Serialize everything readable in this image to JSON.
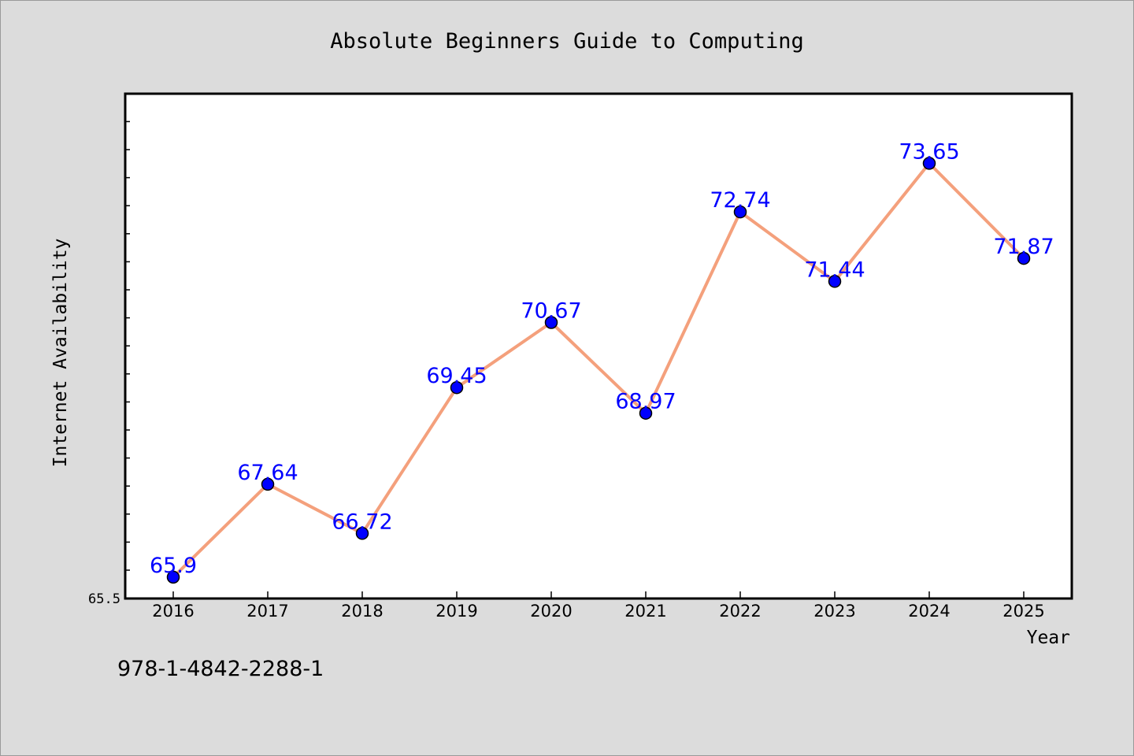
{
  "chart_data": {
    "type": "line",
    "title": "Absolute Beginners Guide to Computing",
    "xlabel": "Year",
    "ylabel": "Internet Availability",
    "categories": [
      "2016",
      "2017",
      "2018",
      "2019",
      "2020",
      "2021",
      "2022",
      "2023",
      "2024",
      "2025"
    ],
    "values": [
      65.9,
      67.64,
      66.72,
      69.45,
      70.67,
      68.97,
      72.74,
      71.44,
      73.65,
      71.87
    ],
    "data_labels": [
      "65.9",
      "67.64",
      "66.72",
      "69.45",
      "70.67",
      "68.97",
      "72.74",
      "71.44",
      "73.65",
      "71.87"
    ],
    "y_tick_label": "65.5",
    "ylim": [
      65.5,
      74.5
    ],
    "grid": false,
    "legend": "none",
    "colors": {
      "line": "#f4a07c",
      "marker": "#0000ff",
      "data_label": "#0000ff",
      "plot_background": "#ffffff",
      "page_background": "#dcdcdc"
    }
  },
  "footer": {
    "isbn": "978-1-4842-2288-1"
  }
}
